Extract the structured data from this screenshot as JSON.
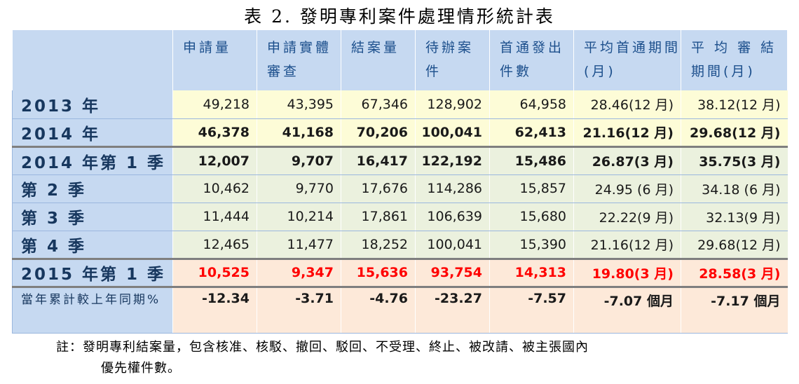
{
  "title": "表 2.  發明專利案件處理情形統計表",
  "headers": [
    "申請量",
    "申請實體審查",
    "結案量",
    "待辦案件",
    "首通發出件數",
    "平均首通期間(月)",
    "平 均 審 結期間(月)"
  ],
  "rows": [
    {
      "label": "2013 年",
      "values": [
        "49,218",
        "43,395",
        "67,346",
        "128,902",
        "64,958",
        "28.46(12 月)",
        "38.12(12 月)"
      ]
    },
    {
      "label": "2014 年",
      "values": [
        "46,378",
        "41,168",
        "70,206",
        "100,041",
        "62,413",
        "21.16(12 月)",
        "29.68(12 月)"
      ]
    },
    {
      "label": "2014 年第 1 季",
      "values": [
        "12,007",
        "9,707",
        "16,417",
        "122,192",
        "15,486",
        "26.87(3 月)",
        "35.75(3 月)"
      ]
    },
    {
      "label": "第 2 季",
      "values": [
        "10,462",
        "9,770",
        "17,676",
        "114,286",
        "15,857",
        "24.95 (6 月)",
        "34.18 (6 月)"
      ]
    },
    {
      "label": "第 3 季",
      "values": [
        "11,444",
        "10,214",
        "17,861",
        "106,639",
        "15,680",
        "22.22(9 月)",
        "32.13(9 月)"
      ]
    },
    {
      "label": "第 4 季",
      "values": [
        "12,465",
        "11,477",
        "18,252",
        "100,041",
        "15,390",
        "21.16(12 月)",
        "29.68(12 月)"
      ]
    },
    {
      "label": "2015 年第 1 季",
      "values": [
        "10,525",
        "9,347",
        "15,636",
        "93,754",
        "14,313",
        "19.80(3 月)",
        "28.58(3 月)"
      ]
    },
    {
      "label": "當年累計較上年同期%",
      "values": [
        "-12.34",
        "-3.71",
        "-4.76",
        "-23.27",
        "-7.57",
        "-7.07 個月",
        "-7.17 個月"
      ]
    }
  ],
  "note_line1": "註：發明專利結案量，包含核准、核駁、撤回、駁回、不受理、終止、被改請、被主張國內",
  "note_line2": "優先權件數。"
}
